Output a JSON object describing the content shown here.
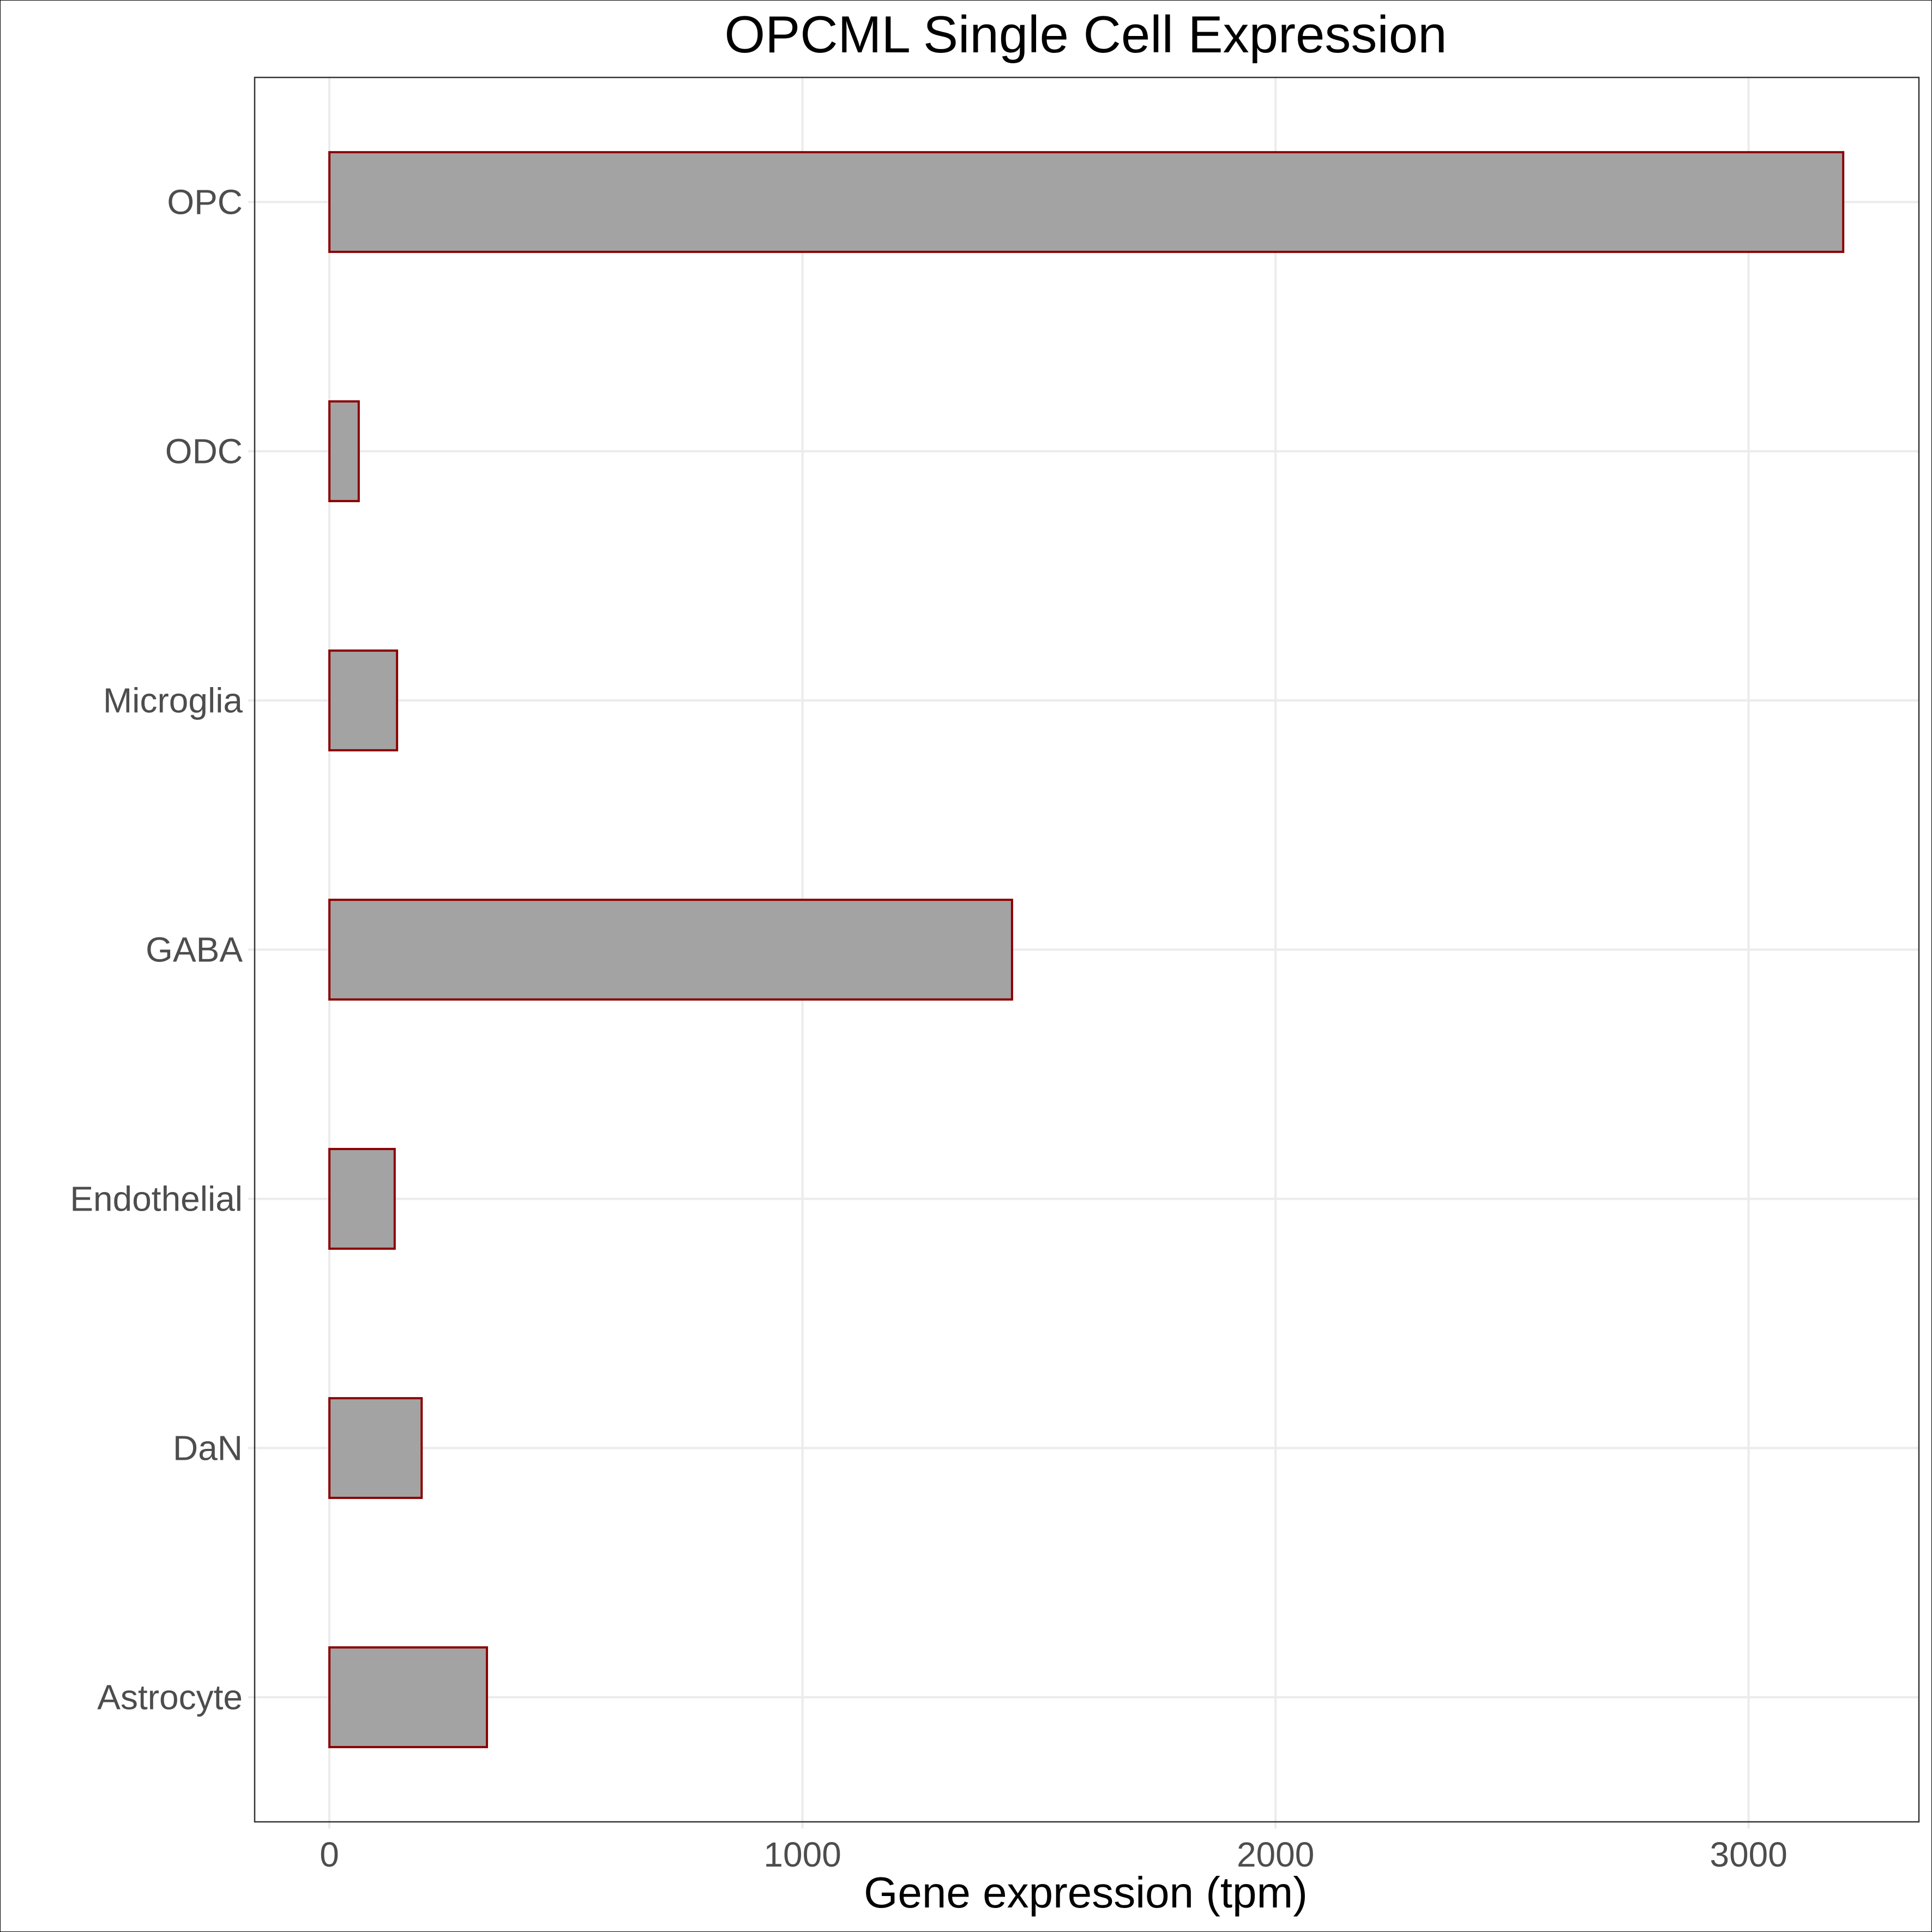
{
  "chart_data": {
    "type": "bar",
    "orientation": "horizontal",
    "title": "OPCML Single Cell Expression",
    "xlabel": "Gene expression (tpm)",
    "ylabel": "",
    "categories": [
      "OPC",
      "ODC",
      "Microglia",
      "GABA",
      "Endothelial",
      "DaN",
      "Astrocyte"
    ],
    "values": [
      3200,
      62,
      143,
      1443,
      138,
      195,
      333
    ],
    "xlim": [
      -158,
      3360
    ],
    "xticks": [
      0,
      1000,
      2000,
      3000
    ],
    "xtick_labels": [
      "0",
      "1000",
      "2000",
      "3000"
    ],
    "grid": true,
    "legend": "none",
    "colors": {
      "bar_fill": "#a3a3a3",
      "bar_stroke": "#8b0000",
      "grid": "#ebebeb",
      "tick_label": "#4d4d4d",
      "panel_border": "#333333"
    }
  }
}
